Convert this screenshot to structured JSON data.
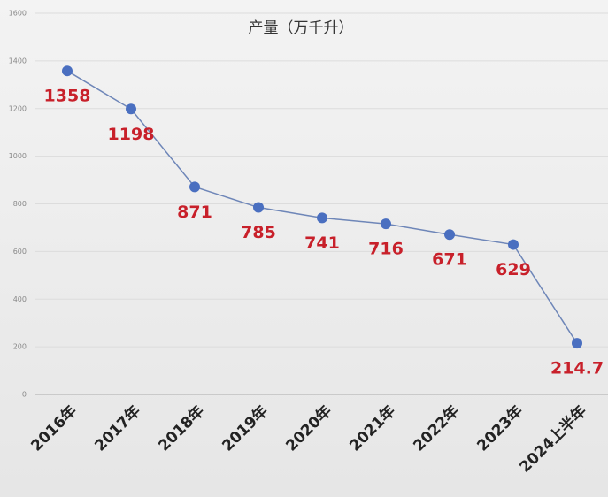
{
  "chart_data": {
    "type": "line",
    "title": "产量（万千升）",
    "categories": [
      "2016年",
      "2017年",
      "2018年",
      "2019年",
      "2020年",
      "2021年",
      "2022年",
      "2023年",
      "2024上半年"
    ],
    "values": [
      1358,
      1198,
      871,
      785,
      741,
      716,
      671,
      629,
      214.7
    ],
    "color": "#4a6fc0",
    "line_color": "#6e86b8",
    "label_color": "#c8202a",
    "ylim": [
      0,
      1600
    ],
    "yticks": [
      0,
      200,
      400,
      600,
      800,
      1000,
      1200,
      1400,
      1600
    ],
    "grid": true
  }
}
